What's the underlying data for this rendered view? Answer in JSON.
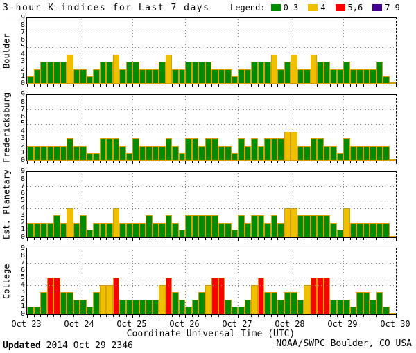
{
  "title": "3-hour K-indices for Last 7 days",
  "legend": {
    "label": "Legend:",
    "items": [
      {
        "label": "0-3",
        "color": "#008c00"
      },
      {
        "label": "4",
        "color": "#eec100"
      },
      {
        "label": "5,6",
        "color": "#fb0000"
      },
      {
        "label": "7-9",
        "color": "#440092"
      }
    ]
  },
  "xlabel": "Coordinate Universal Time (UTC)",
  "footer": {
    "updated_label": "Updated",
    "updated_value": "2014 Oct 29 2346",
    "source": "NOAA/SWPC Boulder, CO USA"
  },
  "chart_data": {
    "type": "bar",
    "title": "3-hour K-indices for Last 7 days",
    "ylim": [
      0,
      9
    ],
    "y_ticks": [
      0,
      1,
      2,
      3,
      4,
      5,
      6,
      7,
      8,
      9
    ],
    "y_dotted_gridlines": [
      4,
      5,
      7
    ],
    "bars_per_day": 8,
    "bar_interval_hours": 3,
    "day_labels": [
      "Oct 23",
      "Oct 24",
      "Oct 25",
      "Oct 26",
      "Oct 27",
      "Oct 28",
      "Oct 29",
      "Oct 30"
    ],
    "color_rules": [
      {
        "k_range": "0-3",
        "color": "#008c00"
      },
      {
        "k_range": "4",
        "color": "#eec100"
      },
      {
        "k_range": "5,6",
        "color": "#fb0000"
      },
      {
        "k_range": "7-9",
        "color": "#440092"
      }
    ],
    "bar_outline_color": "#dd9c00",
    "grid_color": "#8f8f8f",
    "panels": [
      {
        "station": "Boulder",
        "values": [
          1,
          2,
          3,
          3,
          3,
          3,
          4,
          2,
          2,
          1,
          2,
          3,
          3,
          4,
          2,
          3,
          3,
          2,
          2,
          2,
          3,
          4,
          2,
          2,
          3,
          3,
          3,
          3,
          2,
          2,
          2,
          1,
          2,
          2,
          3,
          3,
          3,
          4,
          2,
          3,
          4,
          2,
          2,
          4,
          3,
          3,
          2,
          2,
          3,
          2,
          2,
          2,
          2,
          3,
          1,
          0
        ]
      },
      {
        "station": "Fredericksburg",
        "values": [
          2,
          2,
          2,
          2,
          2,
          2,
          3,
          2,
          2,
          1,
          1,
          3,
          3,
          3,
          2,
          1,
          3,
          2,
          2,
          2,
          2,
          3,
          2,
          1,
          3,
          3,
          2,
          3,
          3,
          2,
          2,
          1,
          3,
          2,
          3,
          2,
          3,
          3,
          3,
          4,
          4,
          2,
          2,
          3,
          3,
          2,
          2,
          1,
          3,
          2,
          2,
          2,
          2,
          2,
          2,
          0
        ]
      },
      {
        "station": "Est. Planetary",
        "values": [
          2,
          2,
          2,
          2,
          3,
          2,
          4,
          2,
          3,
          1,
          2,
          2,
          2,
          4,
          2,
          2,
          2,
          2,
          3,
          2,
          2,
          3,
          2,
          1,
          3,
          3,
          3,
          3,
          3,
          2,
          2,
          1,
          3,
          2,
          3,
          3,
          2,
          3,
          2,
          4,
          4,
          3,
          3,
          3,
          3,
          3,
          2,
          1,
          4,
          2,
          2,
          2,
          2,
          2,
          2,
          0
        ]
      },
      {
        "station": "College",
        "values": [
          1,
          1,
          3,
          5,
          5,
          3,
          3,
          2,
          2,
          1,
          3,
          4,
          4,
          5,
          2,
          2,
          2,
          2,
          2,
          2,
          4,
          5,
          3,
          2,
          1,
          2,
          3,
          4,
          5,
          5,
          2,
          1,
          1,
          2,
          4,
          5,
          3,
          3,
          2,
          3,
          3,
          2,
          4,
          5,
          5,
          5,
          2,
          2,
          2,
          1,
          3,
          3,
          2,
          3,
          1,
          0
        ]
      }
    ]
  }
}
